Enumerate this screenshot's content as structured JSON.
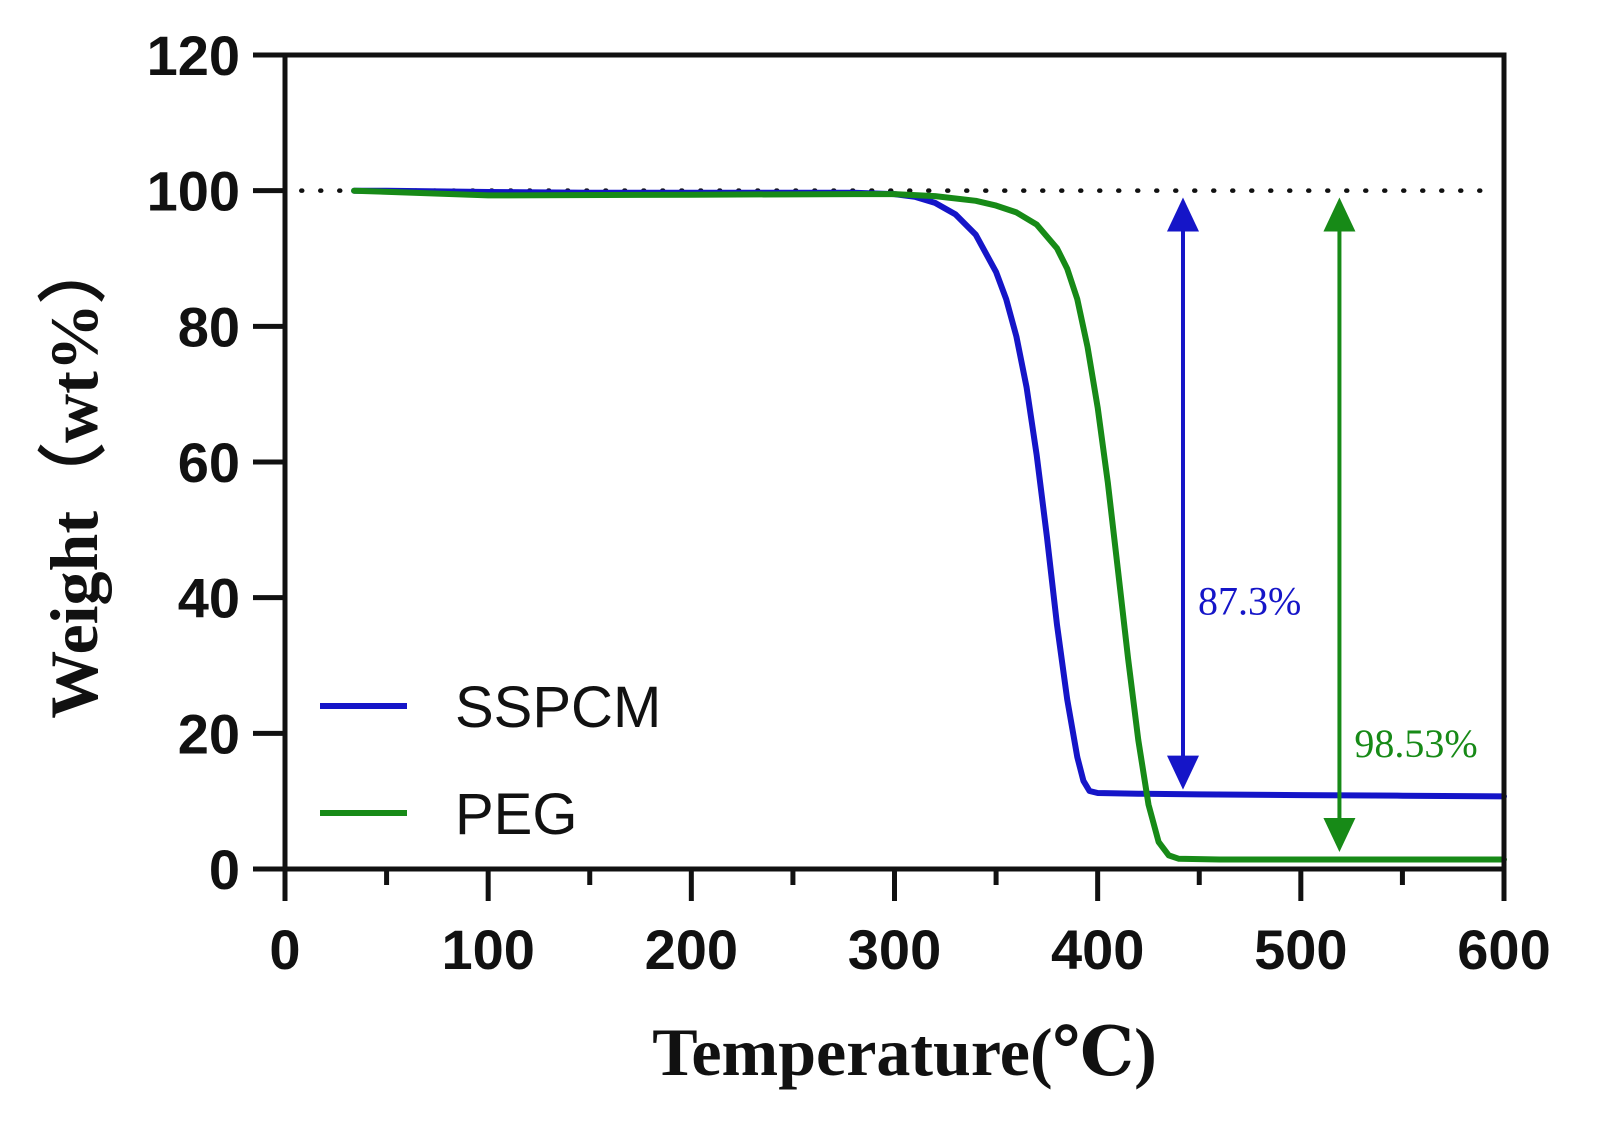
{
  "chart_data": {
    "type": "line",
    "title": "",
    "xlabel": "Temperature(℃)",
    "ylabel": "Weight（wt%）",
    "xlim": [
      0,
      600
    ],
    "ylim": [
      0,
      120
    ],
    "x_ticks": [
      "0",
      "100",
      "200",
      "300",
      "400",
      "500",
      "600"
    ],
    "y_ticks": [
      "0",
      "20",
      "40",
      "60",
      "80",
      "100",
      "120"
    ],
    "grid": false,
    "legend_position": "bottom-left",
    "reference_line": {
      "y": 100,
      "style": "dotted"
    },
    "colors": {
      "SSPCM": "#1515c8",
      "PEG": "#178a17",
      "axis": "#111111"
    },
    "series": [
      {
        "name": "SSPCM",
        "x": [
          34,
          50,
          100,
          150,
          200,
          250,
          280,
          300,
          310,
          320,
          330,
          340,
          350,
          355,
          360,
          365,
          370,
          375,
          380,
          385,
          390,
          393,
          396,
          400,
          420,
          450,
          500,
          550,
          600
        ],
        "y": [
          100,
          100,
          99.8,
          99.7,
          99.7,
          99.7,
          99.7,
          99.5,
          99.1,
          98.2,
          96.5,
          93.5,
          88,
          84,
          78.5,
          71,
          61,
          49,
          36,
          25,
          16.5,
          13,
          11.5,
          11.2,
          11.1,
          11.0,
          10.9,
          10.8,
          10.7
        ]
      },
      {
        "name": "PEG",
        "x": [
          34,
          100,
          200,
          280,
          300,
          320,
          340,
          350,
          360,
          370,
          380,
          385,
          390,
          395,
          400,
          405,
          410,
          415,
          420,
          425,
          430,
          435,
          440,
          460,
          500,
          550,
          600
        ],
        "y": [
          100,
          99.3,
          99.4,
          99.5,
          99.5,
          99.2,
          98.5,
          97.8,
          96.8,
          95,
          91.5,
          88.5,
          84,
          77,
          68,
          57,
          44,
          31,
          19,
          9.5,
          4,
          2,
          1.5,
          1.4,
          1.4,
          1.4,
          1.4
        ]
      }
    ],
    "annotations": [
      {
        "text": "87.3%",
        "arrow_x": 442,
        "from_y": 99,
        "to_y": 11.7,
        "color": "#1515c8"
      },
      {
        "text": "98.53%",
        "arrow_x": 519,
        "from_y": 99,
        "to_y": 2.5,
        "color": "#178a17"
      }
    ]
  }
}
